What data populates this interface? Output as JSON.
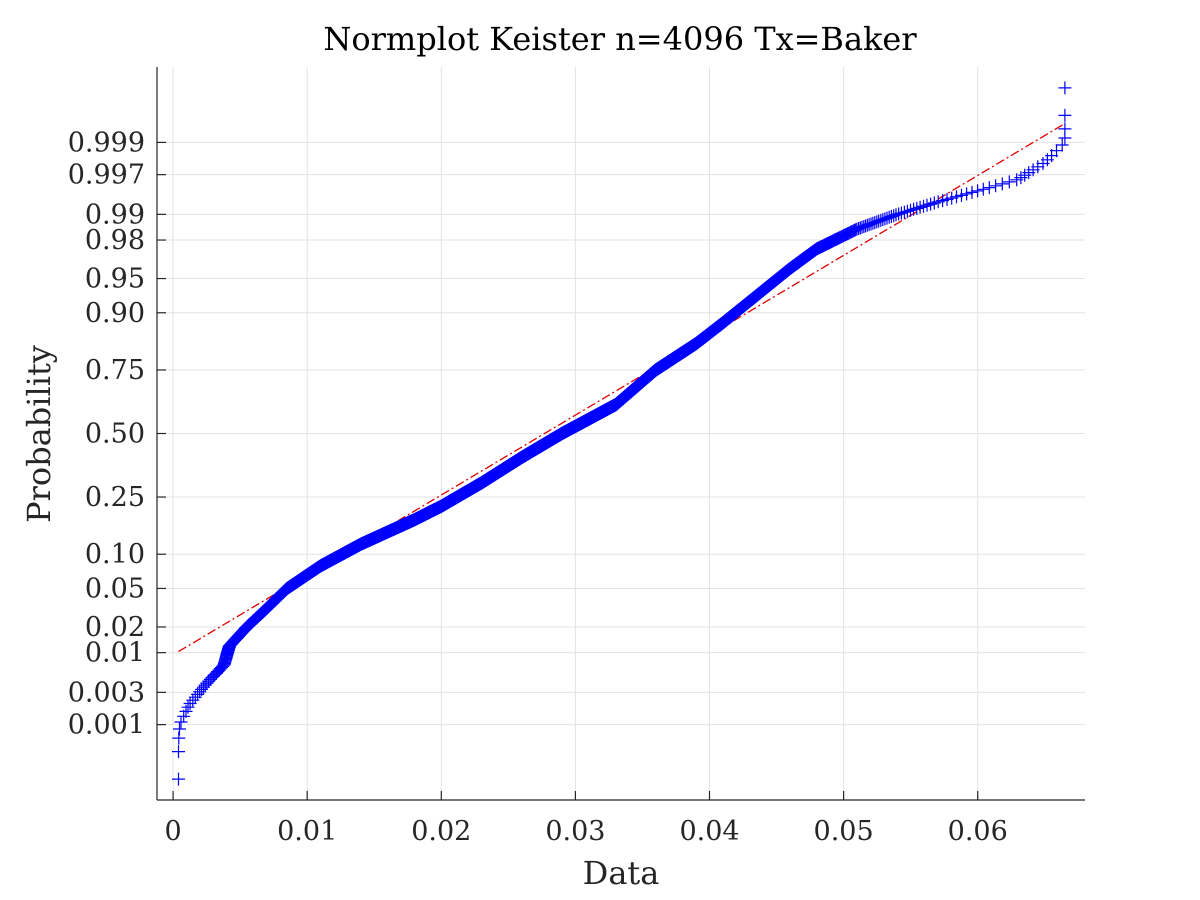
{
  "chart_data": {
    "type": "scatter",
    "title": "Normplot Keister n=4096 Tx=Baker",
    "xlabel": "Data",
    "ylabel": "Probability",
    "n": 4096,
    "xlim": [
      -0.0012,
      0.068
    ],
    "x_ticks": [
      0,
      0.01,
      0.02,
      0.03,
      0.04,
      0.05,
      0.06
    ],
    "x_tick_labels": [
      "0",
      "0.01",
      "0.02",
      "0.03",
      "0.04",
      "0.05",
      "0.06"
    ],
    "y_scale": "normal-probability",
    "ylim_probability": [
      5e-05,
      0.99995
    ],
    "y_ticks": [
      0.001,
      0.003,
      0.01,
      0.02,
      0.05,
      0.1,
      0.25,
      0.5,
      0.75,
      0.9,
      0.95,
      0.98,
      0.99,
      0.997,
      0.999
    ],
    "y_tick_labels": [
      "0.001",
      "0.003",
      "0.01",
      "0.02",
      "0.05",
      "0.10",
      "0.25",
      "0.50",
      "0.75",
      "0.90",
      "0.95",
      "0.98",
      "0.99",
      "0.997",
      "0.999"
    ],
    "grid": true,
    "marker": "plus",
    "marker_color": "#0000ff",
    "reference_line_color": "#dd0000",
    "quantile_curve": [
      {
        "x": 0.0004,
        "p": 0.00012
      },
      {
        "x": 0.0004,
        "p": 0.0005
      },
      {
        "x": 0.0005,
        "p": 0.001
      },
      {
        "x": 0.0012,
        "p": 0.002
      },
      {
        "x": 0.0025,
        "p": 0.004
      },
      {
        "x": 0.0038,
        "p": 0.007
      },
      {
        "x": 0.0042,
        "p": 0.012
      },
      {
        "x": 0.0055,
        "p": 0.02
      },
      {
        "x": 0.0068,
        "p": 0.03
      },
      {
        "x": 0.0085,
        "p": 0.05
      },
      {
        "x": 0.011,
        "p": 0.08
      },
      {
        "x": 0.014,
        "p": 0.12
      },
      {
        "x": 0.018,
        "p": 0.18
      },
      {
        "x": 0.02,
        "p": 0.22
      },
      {
        "x": 0.023,
        "p": 0.3
      },
      {
        "x": 0.026,
        "p": 0.4
      },
      {
        "x": 0.029,
        "p": 0.5
      },
      {
        "x": 0.033,
        "p": 0.62
      },
      {
        "x": 0.036,
        "p": 0.75
      },
      {
        "x": 0.039,
        "p": 0.83
      },
      {
        "x": 0.041,
        "p": 0.88
      },
      {
        "x": 0.043,
        "p": 0.92
      },
      {
        "x": 0.046,
        "p": 0.96
      },
      {
        "x": 0.048,
        "p": 0.975
      },
      {
        "x": 0.051,
        "p": 0.985
      },
      {
        "x": 0.054,
        "p": 0.99
      },
      {
        "x": 0.057,
        "p": 0.993
      },
      {
        "x": 0.06,
        "p": 0.995
      },
      {
        "x": 0.063,
        "p": 0.9965
      },
      {
        "x": 0.065,
        "p": 0.998
      },
      {
        "x": 0.0665,
        "p": 0.999
      },
      {
        "x": 0.0665,
        "p": 0.9995
      },
      {
        "x": 0.0665,
        "p": 0.99988
      }
    ],
    "reference_line": {
      "x": [
        0.0004,
        0.0665
      ],
      "p": [
        0.0103,
        0.9995
      ]
    }
  }
}
